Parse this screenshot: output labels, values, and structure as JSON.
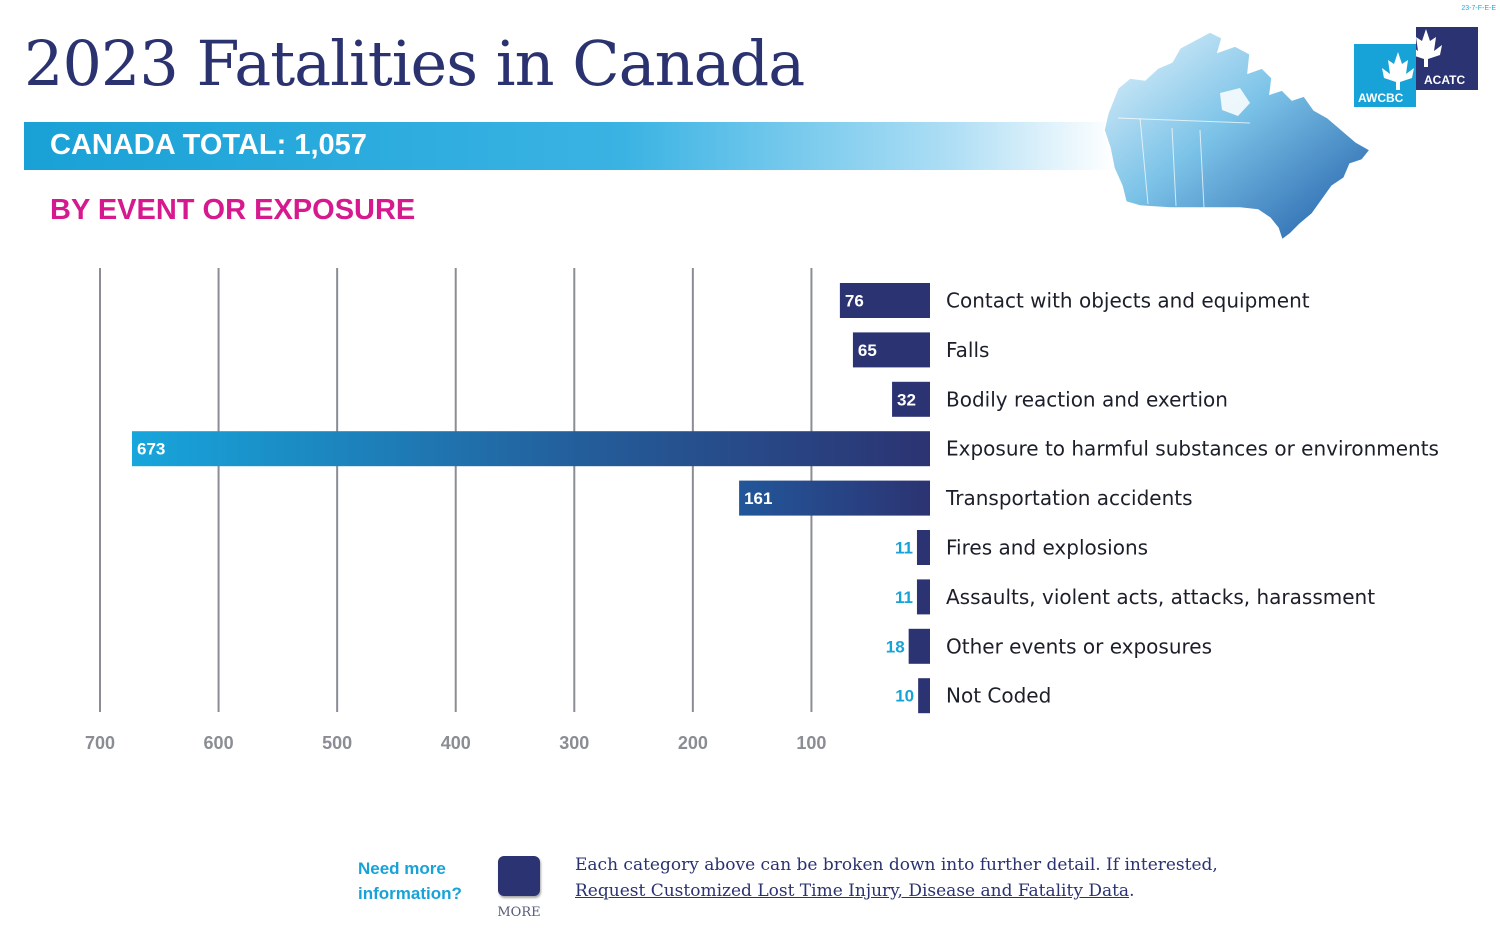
{
  "code": "23-7-F-E-E",
  "title": "2023 Fatalities in Canada",
  "total_label": "CANADA TOTAL: 1,057",
  "subtitle": "BY EVENT OR EXPOSURE",
  "logo": {
    "left": "AWCBC",
    "right": "ACATC"
  },
  "colors": {
    "navy": "#2b3270",
    "cyan": "#17a3d8",
    "magenta": "#d6198e"
  },
  "chart_data": {
    "type": "bar",
    "orientation": "horizontal-right-to-left",
    "categories": [
      "Contact with objects and equipment",
      "Falls",
      "Bodily reaction and exertion",
      "Exposure to harmful substances or environments",
      "Transportation accidents",
      "Fires and explosions",
      "Assaults, violent acts, attacks, harassment",
      "Other events or exposures",
      "Not Coded"
    ],
    "values": [
      76,
      65,
      32,
      673,
      161,
      11,
      11,
      18,
      10
    ],
    "ticks": [
      700,
      600,
      500,
      400,
      300,
      200,
      100
    ],
    "xlim": [
      0,
      700
    ],
    "title": "BY EVENT OR EXPOSURE",
    "xlabel": "",
    "ylabel": ""
  },
  "footer": {
    "question_line1": "Need more",
    "question_line2": "information?",
    "button_label": "MORE",
    "text_line1": "Each category above can be broken down into further detail. If interested,",
    "link_text": "Request Customized Lost Time Injury, Disease and Fatality Data",
    "link_suffix": "."
  }
}
